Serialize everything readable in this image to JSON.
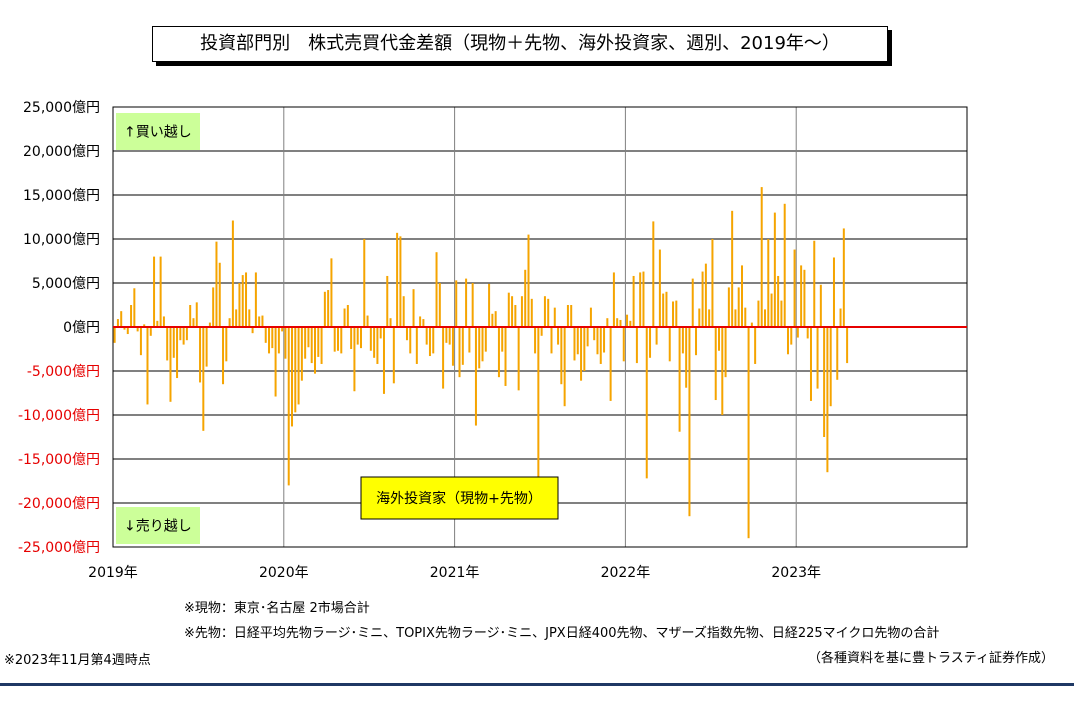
{
  "chart_data": {
    "type": "bar",
    "title": "投資部門別　株式売買代金差額（現物＋先物、海外投資家、週別、2019年～）",
    "series_label": "海外投資家（現物+先物）",
    "buy_label": "↑買い越し",
    "sell_label": "↓売り越し",
    "ylim": [
      -25000,
      25000
    ],
    "y_ticks": [
      {
        "value": 25000,
        "label": "25,000億円"
      },
      {
        "value": 20000,
        "label": "20,000億円"
      },
      {
        "value": 15000,
        "label": "15,000億円"
      },
      {
        "value": 10000,
        "label": "10,000億円"
      },
      {
        "value": 5000,
        "label": "5,000億円"
      },
      {
        "value": 0,
        "label": "0億円"
      },
      {
        "value": -5000,
        "label": "-5,000億円"
      },
      {
        "value": -10000,
        "label": "-10,000億円"
      },
      {
        "value": -15000,
        "label": "-15,000億円"
      },
      {
        "value": -20000,
        "label": "-20,000億円"
      },
      {
        "value": -25000,
        "label": "-25,000億円"
      }
    ],
    "x_labels": [
      "2019年",
      "2020年",
      "2021年",
      "2022年",
      "2023年"
    ],
    "weeks_per_year": 52,
    "grid": true,
    "bar_color": "#f5a400",
    "zero_line_color": "#e60000",
    "negative_label_color": "#e60000",
    "values": [
      -1800,
      900,
      1800,
      -300,
      -800,
      2500,
      4400,
      -500,
      -3200,
      300,
      -8800,
      -1000,
      8000,
      700,
      8000,
      1200,
      -3800,
      -8500,
      -3500,
      -5800,
      -1500,
      -2000,
      -1500,
      2500,
      1000,
      2800,
      -6300,
      -11800,
      -4500,
      500,
      4500,
      9700,
      7300,
      -6500,
      -3900,
      1000,
      12100,
      2000,
      5000,
      5900,
      6200,
      2000,
      -700,
      6200,
      1200,
      1300,
      -1800,
      -3000,
      -2400,
      -7900,
      -3000,
      -500,
      -3600,
      -18000,
      -11300,
      -9700,
      -8800,
      -6100,
      -3600,
      -2300,
      -4100,
      -5300,
      -3400,
      -4200,
      4000,
      4200,
      7800,
      -2800,
      -2700,
      -3000,
      2100,
      2500,
      -2500,
      -7300,
      -2000,
      -2400,
      10000,
      1300,
      -2700,
      -3500,
      -4200,
      -1300,
      -7600,
      5800,
      1000,
      -6400,
      10700,
      10300,
      3500,
      -1500,
      -3000,
      4300,
      -4200,
      1200,
      900,
      -2000,
      -3300,
      -3000,
      8500,
      5000,
      -7000,
      -1800,
      -2000,
      -4400,
      5300,
      -5700,
      -4300,
      5500,
      -2900,
      5000,
      -11200,
      -4700,
      -3900,
      -2800,
      4900,
      1500,
      1800,
      -5700,
      -2800,
      -6700,
      3900,
      3500,
      2500,
      -7200,
      3500,
      6500,
      10500,
      3200,
      -3000,
      -17600,
      -1000,
      3500,
      3200,
      -3000,
      2200,
      -2000,
      -6500,
      -9000,
      2500,
      2500,
      -3800,
      -3100,
      -6100,
      -5000,
      -2200,
      2200,
      -1500,
      -3100,
      -4200,
      -2900,
      1000,
      -8400,
      6200,
      1000,
      800,
      -3900,
      1400,
      700,
      5800,
      -4100,
      6200,
      6300,
      -17200,
      -3500,
      12000,
      -2000,
      8800,
      3800,
      4000,
      -3900,
      2900,
      3000,
      -11900,
      -3000,
      -6900,
      -21500,
      5500,
      -3200,
      2100,
      6300,
      7200,
      2000,
      10000,
      -8300,
      -2700,
      -10000,
      -5700,
      4500,
      13200,
      2000,
      4500,
      7000,
      2200,
      -24000,
      500,
      -4200,
      3000,
      15900,
      2000,
      10000,
      3800,
      13000,
      5800,
      3000,
      14000,
      -3100,
      -2000,
      8800,
      -1200,
      7000,
      6500,
      -1300,
      -8400,
      9800,
      -7000,
      4800,
      -12500,
      -16500,
      -9000,
      7900,
      -6000,
      2100,
      11200,
      -4100
    ]
  },
  "notes": {
    "genbutsu": "※現物：東京･名古屋 2市場合計",
    "sakimono": "※先物：日経平均先物ラージ･ミニ、TOPIX先物ラージ･ミニ、JPX日経400先物、マザーズ指数先物、日経225マイクロ先物の合計",
    "as_of": "※2023年11月第4週時点",
    "source": "（各種資料を基に豊トラスティ証券作成）"
  }
}
